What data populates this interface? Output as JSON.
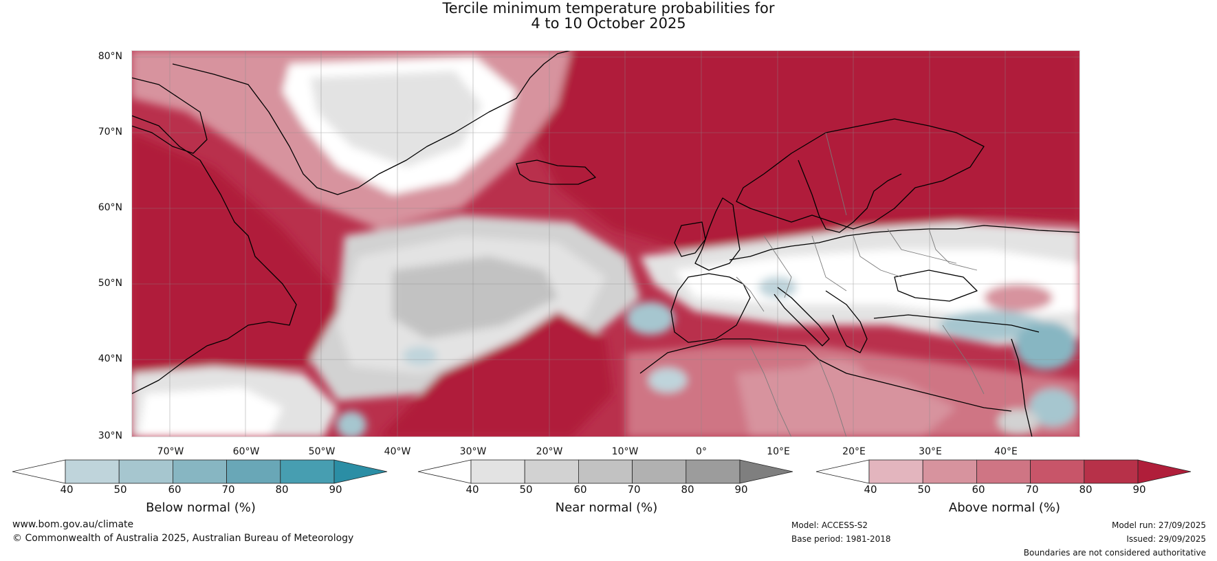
{
  "title": {
    "line1": "Tercile minimum temperature probabilities for",
    "line2": "4 to 10 October 2025"
  },
  "lat_labels": [
    "80°N",
    "70°N",
    "60°N",
    "50°N",
    "40°N",
    "30°N"
  ],
  "lon_labels": [
    "70°W",
    "60°W",
    "50°W",
    "40°W",
    "30°W",
    "20°W",
    "10°W",
    "0°",
    "10°E",
    "20°E",
    "30°E",
    "40°E"
  ],
  "colors": {
    "below": [
      "#bfd4db",
      "#a6c6cf",
      "#87b6c2",
      "#69a7b7",
      "#479eb1",
      "#2b8ea5"
    ],
    "near": [
      "#e3e3e3",
      "#d2d2d2",
      "#c2c2c2",
      "#b1b1b1",
      "#9c9c9c",
      "#7f7f7f"
    ],
    "above": [
      "#e3b5be",
      "#d7939e",
      "#cf7584",
      "#c85569",
      "#b73149",
      "#b01e3a"
    ],
    "ocean_base": "#c53a55",
    "land_white": "#ffffff"
  },
  "colorbars": [
    {
      "key": "below",
      "label": "Below normal (%)",
      "ticks": [
        "40",
        "50",
        "60",
        "70",
        "80",
        "90"
      ]
    },
    {
      "key": "near",
      "label": "Near normal (%)",
      "ticks": [
        "40",
        "50",
        "60",
        "70",
        "80",
        "90"
      ]
    },
    {
      "key": "above",
      "label": "Above normal (%)",
      "ticks": [
        "40",
        "50",
        "60",
        "70",
        "80",
        "90"
      ]
    }
  ],
  "footer": {
    "website": "www.bom.gov.au/climate",
    "copyright": "© Commonwealth of Australia 2025, Australian Bureau of Meteorology",
    "model": "Model: ACCESS-S2",
    "base_period": "Base period: 1981-2018",
    "model_run": "Model run: 27/09/2025",
    "issued": "Issued: 29/09/2025",
    "disclaimer": "Boundaries are not considered authoritative"
  }
}
